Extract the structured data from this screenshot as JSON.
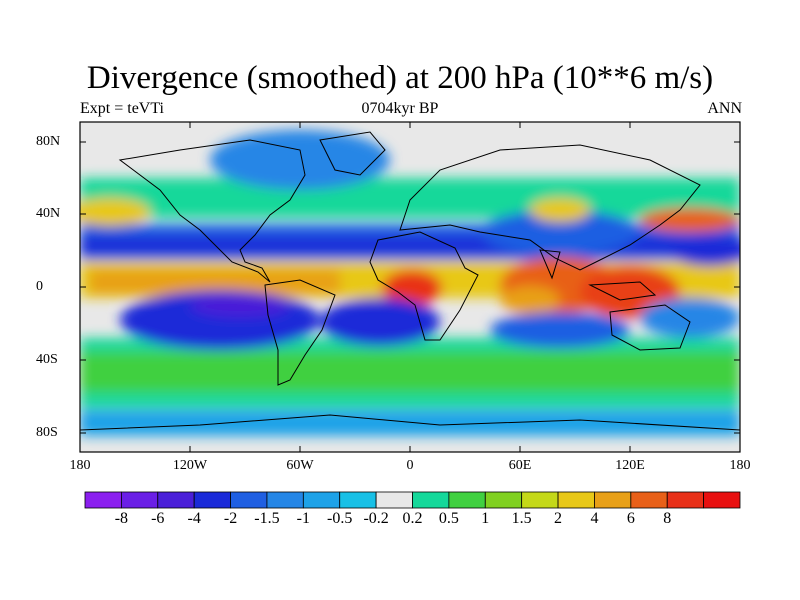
{
  "title": "Divergence (smoothed) at 200 hPa (10**6 m/s)",
  "subtitle_left": "Expt = teVTi",
  "subtitle_center": "0704kyr BP",
  "subtitle_right": "ANN",
  "lat_ticks": [
    "80N",
    "40N",
    "0",
    "40S",
    "80S"
  ],
  "lon_ticks": [
    "180",
    "120W",
    "60W",
    "0",
    "60E",
    "120E",
    "180"
  ],
  "colorbar": {
    "colors": [
      "#8b1fef",
      "#6a1fe6",
      "#4a1fd8",
      "#1a2ad8",
      "#1f5fe2",
      "#2586e6",
      "#1ea2e8",
      "#18c0e6",
      "#e8e8e8",
      "#14d89a",
      "#40d040",
      "#80d020",
      "#c4d818",
      "#e8c818",
      "#e8a018",
      "#e86018",
      "#e83018",
      "#e81010"
    ],
    "labels": [
      "-8",
      "-6",
      "-4",
      "-2",
      "-1.5",
      "-1",
      "-0.5",
      "-0.2",
      "0.2",
      "0.5",
      "1",
      "1.5",
      "2",
      "4",
      "6",
      "8"
    ]
  }
}
